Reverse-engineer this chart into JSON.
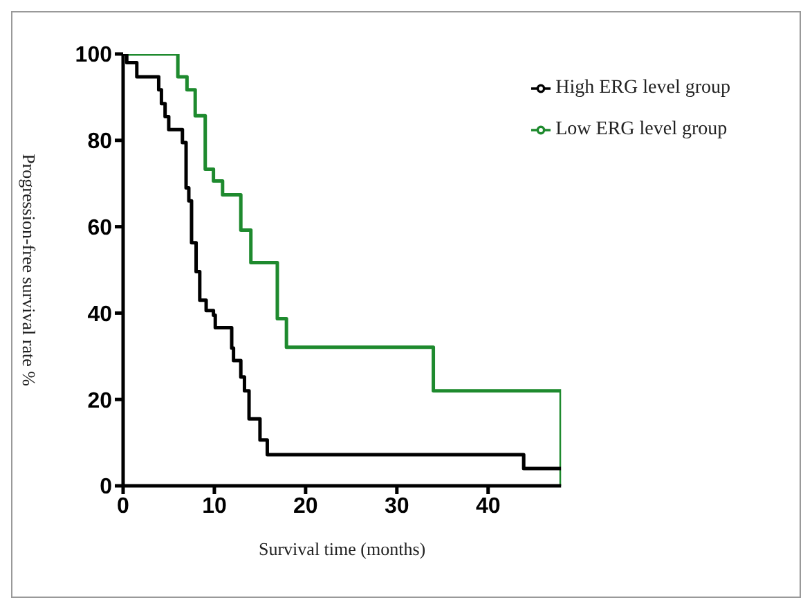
{
  "chart_data": {
    "type": "step",
    "xlabel": "Survival time (months)",
    "ylabel": "Progression-free survival rate %",
    "xlim": [
      0,
      48
    ],
    "xticks": [
      0,
      10,
      20,
      30,
      40
    ],
    "ylim": [
      0,
      100
    ],
    "yticks": [
      0,
      20,
      40,
      60,
      80,
      100
    ],
    "grid": false,
    "legend": "top right",
    "marker": "none",
    "line_style": "solid",
    "series": [
      {
        "name": "Low ERG level group",
        "color": "#1e8a2e",
        "x": [
          0,
          6.0,
          7.0,
          7.9,
          9.0,
          9.9,
          10.9,
          12.9,
          14.0,
          16.9,
          17.9,
          34.0,
          48
        ],
        "values": [
          100,
          94.7,
          91.7,
          85.7,
          73.3,
          70.6,
          67.4,
          59.2,
          51.7,
          38.7,
          32.1,
          22.0,
          0
        ]
      },
      {
        "name": "High ERG level group",
        "color": "#000000",
        "x": [
          0,
          0.4,
          1.5,
          3.9,
          4.2,
          4.6,
          5.0,
          6.5,
          6.9,
          7.2,
          7.5,
          8.0,
          8.4,
          9.1,
          9.9,
          10.1,
          11.9,
          12.1,
          12.9,
          13.3,
          13.8,
          15.0,
          15.8,
          43.9,
          48
        ],
        "values": [
          100,
          98,
          94.7,
          91.7,
          88.5,
          85.5,
          82.5,
          79.5,
          69,
          66,
          56.3,
          49.6,
          43,
          40.6,
          39.5,
          36.6,
          31.9,
          29,
          25.2,
          22,
          15.5,
          10.6,
          7.2,
          4,
          4
        ]
      }
    ]
  }
}
